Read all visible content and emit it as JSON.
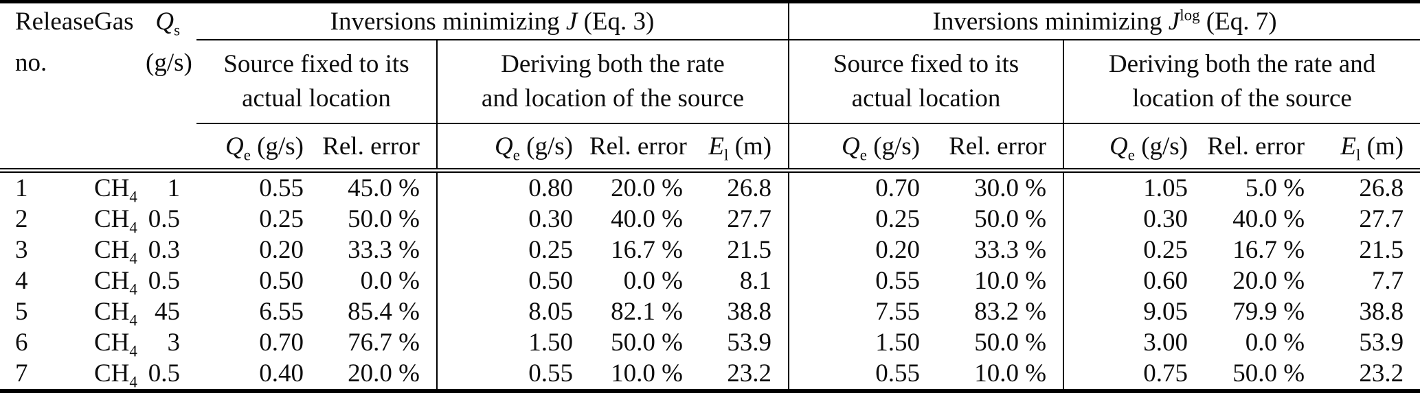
{
  "colors": {
    "background": "#ffffff",
    "rule": "#000000",
    "text": "#0d0d0d"
  },
  "headers": {
    "release_line1": "Release",
    "release_line2": "no.",
    "gas": "Gas",
    "qs": {
      "base": "Q",
      "sub": "s"
    },
    "qs_unit": "(g/s)",
    "group_j": {
      "prefix": "Inversions minimizing ",
      "symbol": "J",
      "suffix": " (Eq. 3)"
    },
    "group_jlog": {
      "prefix": "Inversions minimizing ",
      "symbol": "J",
      "sup": "log",
      "suffix": " (Eq. 7)"
    },
    "sub_fixed": {
      "line1": "Source fixed to its",
      "line2": "actual location"
    },
    "sub_derive_j": {
      "line1": "Deriving both the rate",
      "line2": "and location of the source"
    },
    "sub_derive_jlog": {
      "line1": "Deriving both the rate and",
      "line2": "location of the source"
    },
    "col_qe": {
      "base": "Q",
      "sub": "e",
      "unit": " (g/s)"
    },
    "col_rel": "Rel. error",
    "col_el": {
      "base": "E",
      "sub": "l",
      "unit": " (m)"
    }
  },
  "rows": [
    {
      "no": "1",
      "gas": {
        "base": "CH",
        "sub": "4"
      },
      "qs": "1",
      "j": {
        "fixed": {
          "qe": "0.55",
          "rel": "45.0 %"
        },
        "derive": {
          "qe": "0.80",
          "rel": "20.0 %",
          "el": "26.8"
        }
      },
      "jlog": {
        "fixed": {
          "qe": "0.70",
          "rel": "30.0 %"
        },
        "derive": {
          "qe": "1.05",
          "rel": "5.0 %",
          "el": "26.8"
        }
      }
    },
    {
      "no": "2",
      "gas": {
        "base": "CH",
        "sub": "4"
      },
      "qs": "0.5",
      "j": {
        "fixed": {
          "qe": "0.25",
          "rel": "50.0 %"
        },
        "derive": {
          "qe": "0.30",
          "rel": "40.0 %",
          "el": "27.7"
        }
      },
      "jlog": {
        "fixed": {
          "qe": "0.25",
          "rel": "50.0 %"
        },
        "derive": {
          "qe": "0.30",
          "rel": "40.0 %",
          "el": "27.7"
        }
      }
    },
    {
      "no": "3",
      "gas": {
        "base": "CH",
        "sub": "4"
      },
      "qs": "0.3",
      "j": {
        "fixed": {
          "qe": "0.20",
          "rel": "33.3 %"
        },
        "derive": {
          "qe": "0.25",
          "rel": "16.7 %",
          "el": "21.5"
        }
      },
      "jlog": {
        "fixed": {
          "qe": "0.20",
          "rel": "33.3 %"
        },
        "derive": {
          "qe": "0.25",
          "rel": "16.7 %",
          "el": "21.5"
        }
      }
    },
    {
      "no": "4",
      "gas": {
        "base": "CH",
        "sub": "4"
      },
      "qs": "0.5",
      "j": {
        "fixed": {
          "qe": "0.50",
          "rel": "0.0 %"
        },
        "derive": {
          "qe": "0.50",
          "rel": "0.0 %",
          "el": "8.1"
        }
      },
      "jlog": {
        "fixed": {
          "qe": "0.55",
          "rel": "10.0 %"
        },
        "derive": {
          "qe": "0.60",
          "rel": "20.0 %",
          "el": "7.7"
        }
      }
    },
    {
      "no": "5",
      "gas": {
        "base": "CH",
        "sub": "4"
      },
      "qs": "45",
      "j": {
        "fixed": {
          "qe": "6.55",
          "rel": "85.4 %"
        },
        "derive": {
          "qe": "8.05",
          "rel": "82.1 %",
          "el": "38.8"
        }
      },
      "jlog": {
        "fixed": {
          "qe": "7.55",
          "rel": "83.2 %"
        },
        "derive": {
          "qe": "9.05",
          "rel": "79.9 %",
          "el": "38.8"
        }
      }
    },
    {
      "no": "6",
      "gas": {
        "base": "CH",
        "sub": "4"
      },
      "qs": "3",
      "j": {
        "fixed": {
          "qe": "0.70",
          "rel": "76.7 %"
        },
        "derive": {
          "qe": "1.50",
          "rel": "50.0 %",
          "el": "53.9"
        }
      },
      "jlog": {
        "fixed": {
          "qe": "1.50",
          "rel": "50.0 %"
        },
        "derive": {
          "qe": "3.00",
          "rel": "0.0 %",
          "el": "53.9"
        }
      }
    },
    {
      "no": "7",
      "gas": {
        "base": "CH",
        "sub": "4"
      },
      "qs": "0.5",
      "j": {
        "fixed": {
          "qe": "0.40",
          "rel": "20.0 %"
        },
        "derive": {
          "qe": "0.55",
          "rel": "10.0 %",
          "el": "23.2"
        }
      },
      "jlog": {
        "fixed": {
          "qe": "0.55",
          "rel": "10.0 %"
        },
        "derive": {
          "qe": "0.75",
          "rel": "50.0 %",
          "el": "23.2"
        }
      }
    }
  ]
}
